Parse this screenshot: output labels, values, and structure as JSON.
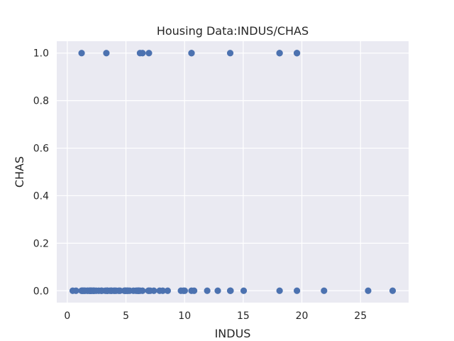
{
  "chart_data": {
    "type": "scatter",
    "title": "Housing Data:INDUS/CHAS",
    "xlabel": "INDUS",
    "ylabel": "CHAS",
    "xlim": [
      -0.9,
      29.1
    ],
    "ylim": [
      -0.05,
      1.05
    ],
    "x_ticks": [
      0,
      5,
      10,
      15,
      20,
      25
    ],
    "x_tick_labels": [
      "0",
      "5",
      "10",
      "15",
      "20",
      "25"
    ],
    "y_ticks": [
      0.0,
      0.2,
      0.4,
      0.6,
      0.8,
      1.0
    ],
    "y_tick_labels": [
      "0.0",
      "0.2",
      "0.4",
      "0.6",
      "0.8",
      "1.0"
    ],
    "grid": true,
    "colors": {
      "background": "#eaeaf2",
      "grid": "#ffffff",
      "marker": "#4c72b0"
    },
    "series": [
      {
        "points": [
          {
            "x": 1.22,
            "y": 1
          },
          {
            "x": 3.33,
            "y": 1
          },
          {
            "x": 6.2,
            "y": 1
          },
          {
            "x": 6.41,
            "y": 1
          },
          {
            "x": 6.96,
            "y": 1
          },
          {
            "x": 10.59,
            "y": 1
          },
          {
            "x": 10.59,
            "y": 1
          },
          {
            "x": 13.89,
            "y": 1
          },
          {
            "x": 18.1,
            "y": 1
          },
          {
            "x": 18.1,
            "y": 1
          },
          {
            "x": 19.58,
            "y": 1
          },
          {
            "x": 19.58,
            "y": 1
          },
          {
            "x": 0.46,
            "y": 0
          },
          {
            "x": 0.74,
            "y": 0
          },
          {
            "x": 1.21,
            "y": 0
          },
          {
            "x": 1.25,
            "y": 0
          },
          {
            "x": 1.32,
            "y": 0
          },
          {
            "x": 1.38,
            "y": 0
          },
          {
            "x": 1.47,
            "y": 0
          },
          {
            "x": 1.52,
            "y": 0
          },
          {
            "x": 1.69,
            "y": 0
          },
          {
            "x": 1.76,
            "y": 0
          },
          {
            "x": 1.89,
            "y": 0
          },
          {
            "x": 1.91,
            "y": 0
          },
          {
            "x": 2.01,
            "y": 0
          },
          {
            "x": 2.02,
            "y": 0
          },
          {
            "x": 2.06,
            "y": 0
          },
          {
            "x": 2.18,
            "y": 0
          },
          {
            "x": 2.24,
            "y": 0
          },
          {
            "x": 2.25,
            "y": 0
          },
          {
            "x": 2.31,
            "y": 0
          },
          {
            "x": 2.46,
            "y": 0
          },
          {
            "x": 2.68,
            "y": 0
          },
          {
            "x": 2.89,
            "y": 0
          },
          {
            "x": 2.95,
            "y": 0
          },
          {
            "x": 3.24,
            "y": 0
          },
          {
            "x": 3.37,
            "y": 0
          },
          {
            "x": 3.41,
            "y": 0
          },
          {
            "x": 3.44,
            "y": 0
          },
          {
            "x": 3.64,
            "y": 0
          },
          {
            "x": 3.75,
            "y": 0
          },
          {
            "x": 3.78,
            "y": 0
          },
          {
            "x": 3.97,
            "y": 0
          },
          {
            "x": 4.05,
            "y": 0
          },
          {
            "x": 4.15,
            "y": 0
          },
          {
            "x": 4.39,
            "y": 0
          },
          {
            "x": 4.49,
            "y": 0
          },
          {
            "x": 4.86,
            "y": 0
          },
          {
            "x": 4.93,
            "y": 0
          },
          {
            "x": 4.95,
            "y": 0
          },
          {
            "x": 5.04,
            "y": 0
          },
          {
            "x": 5.13,
            "y": 0
          },
          {
            "x": 5.19,
            "y": 0
          },
          {
            "x": 5.32,
            "y": 0
          },
          {
            "x": 5.64,
            "y": 0
          },
          {
            "x": 5.86,
            "y": 0
          },
          {
            "x": 5.96,
            "y": 0
          },
          {
            "x": 6.06,
            "y": 0
          },
          {
            "x": 6.07,
            "y": 0
          },
          {
            "x": 6.09,
            "y": 0
          },
          {
            "x": 6.2,
            "y": 0
          },
          {
            "x": 6.41,
            "y": 0
          },
          {
            "x": 6.91,
            "y": 0
          },
          {
            "x": 6.96,
            "y": 0
          },
          {
            "x": 7.07,
            "y": 0
          },
          {
            "x": 7.38,
            "y": 0
          },
          {
            "x": 7.87,
            "y": 0
          },
          {
            "x": 8.14,
            "y": 0
          },
          {
            "x": 8.56,
            "y": 0
          },
          {
            "x": 9.69,
            "y": 0
          },
          {
            "x": 9.9,
            "y": 0
          },
          {
            "x": 10.01,
            "y": 0
          },
          {
            "x": 10.59,
            "y": 0
          },
          {
            "x": 10.81,
            "y": 0
          },
          {
            "x": 11.93,
            "y": 0
          },
          {
            "x": 12.83,
            "y": 0
          },
          {
            "x": 13.89,
            "y": 0
          },
          {
            "x": 13.92,
            "y": 0
          },
          {
            "x": 15.04,
            "y": 0
          },
          {
            "x": 18.1,
            "y": 0
          },
          {
            "x": 19.58,
            "y": 0
          },
          {
            "x": 21.89,
            "y": 0
          },
          {
            "x": 25.65,
            "y": 0
          },
          {
            "x": 27.74,
            "y": 0
          }
        ]
      }
    ]
  }
}
